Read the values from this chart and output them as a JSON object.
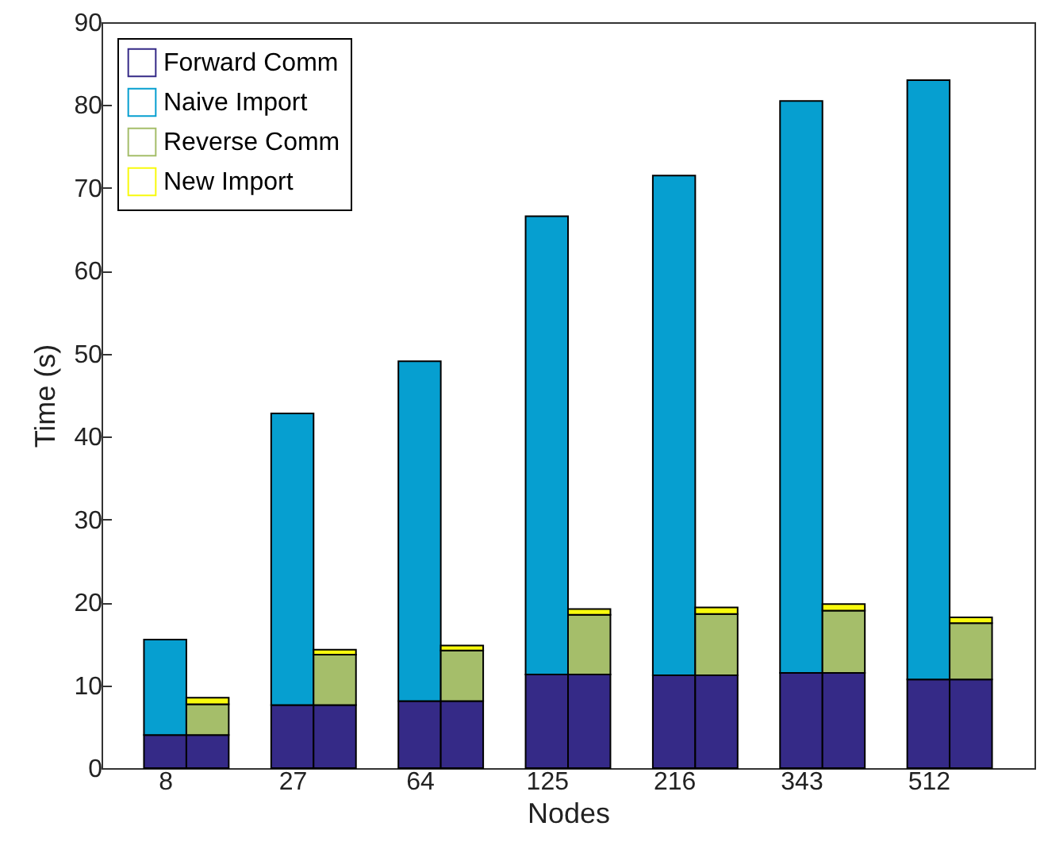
{
  "chart_data": {
    "type": "bar",
    "stacked": true,
    "xlabel": "Nodes",
    "ylabel": "Time (s)",
    "categories": [
      "8",
      null,
      null,
      "27",
      null,
      null,
      "64",
      null,
      null,
      "125",
      null,
      null,
      "216",
      null,
      null,
      "343",
      null,
      null,
      "512",
      null
    ],
    "ylim": [
      0,
      90
    ],
    "yticks": [
      0,
      10,
      20,
      30,
      40,
      50,
      60,
      70,
      80,
      90
    ],
    "legend": "top left",
    "series": [
      {
        "name": "Forward Comm",
        "color": "#352a87",
        "values": [
          4.0,
          4.0,
          null,
          7.6,
          7.6,
          null,
          8.1,
          8.1,
          null,
          11.3,
          11.3,
          null,
          11.2,
          11.2,
          null,
          11.5,
          11.5,
          null,
          10.7,
          10.7
        ]
      },
      {
        "name": "Naive Import",
        "color": "#069fd0",
        "values": [
          11.5,
          null,
          null,
          35.2,
          null,
          null,
          41.0,
          null,
          null,
          55.3,
          null,
          null,
          60.3,
          null,
          null,
          69.0,
          null,
          null,
          72.3,
          null
        ]
      },
      {
        "name": "Reverse Comm",
        "color": "#a5be6a",
        "values": [
          null,
          3.7,
          null,
          null,
          6.1,
          null,
          null,
          6.1,
          null,
          null,
          7.2,
          null,
          null,
          7.4,
          null,
          null,
          7.5,
          null,
          null,
          6.8
        ]
      },
      {
        "name": "New Import",
        "color": "#f8fa0d",
        "values": [
          null,
          0.8,
          null,
          null,
          0.6,
          null,
          null,
          0.6,
          null,
          null,
          0.7,
          null,
          null,
          0.8,
          null,
          null,
          0.8,
          null,
          null,
          0.7
        ]
      }
    ]
  }
}
